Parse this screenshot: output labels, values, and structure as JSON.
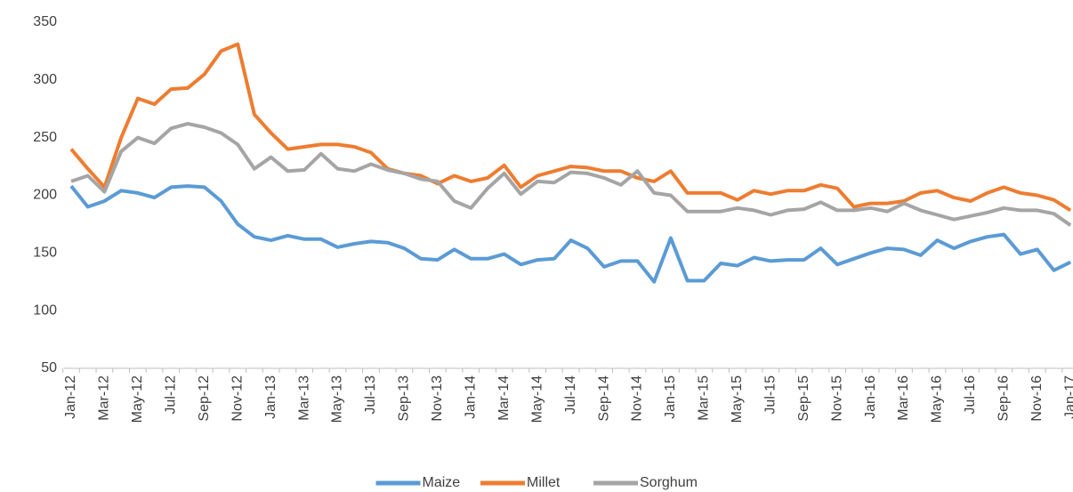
{
  "chart_data": {
    "type": "line",
    "categories": [
      "Jan-12",
      null,
      "Mar-12",
      null,
      "May-12",
      null,
      "Jul-12",
      null,
      "Sep-12",
      null,
      "Nov-12",
      null,
      "Jan-13",
      null,
      "Mar-13",
      null,
      "May-13",
      null,
      "Jul-13",
      null,
      "Sep-13",
      null,
      "Nov-13",
      null,
      "Jan-14",
      null,
      "Mar-14",
      null,
      "May-14",
      null,
      "Jul-14",
      null,
      "Sep-14",
      null,
      "Nov-14",
      null,
      "Jan-15",
      null,
      "Mar-15",
      null,
      "May-15",
      null,
      "Jul-15",
      null,
      "Sep-15",
      null,
      "Nov-15",
      null,
      "Jan-16",
      null,
      "Mar-16",
      null,
      "May-16",
      null,
      "Jul-16",
      null,
      "Sep-16",
      null,
      "Nov-16",
      null,
      "Jan-17"
    ],
    "series": [
      {
        "name": "Maize",
        "color": "#5b9bd5",
        "values": [
          208,
          190,
          195,
          204,
          202,
          198,
          207,
          208,
          207,
          195,
          175,
          164,
          161,
          165,
          162,
          162,
          155,
          158,
          160,
          159,
          154,
          145,
          144,
          153,
          145,
          145,
          149,
          140,
          144,
          145,
          161,
          154,
          138,
          143,
          143,
          125,
          163,
          126,
          126,
          141,
          139,
          146,
          143,
          144,
          144,
          154,
          140,
          145,
          150,
          154,
          153,
          148,
          161,
          154,
          160,
          164,
          166,
          149,
          153,
          135,
          142
        ]
      },
      {
        "name": "Millet",
        "color": "#ed7d31",
        "values": [
          240,
          223,
          207,
          250,
          284,
          279,
          292,
          293,
          305,
          325,
          331,
          270,
          254,
          240,
          242,
          244,
          244,
          242,
          237,
          223,
          219,
          217,
          210,
          217,
          212,
          215,
          226,
          207,
          217,
          221,
          225,
          224,
          221,
          221,
          215,
          212,
          221,
          202,
          202,
          202,
          196,
          204,
          201,
          204,
          204,
          209,
          206,
          190,
          193,
          193,
          195,
          202,
          204,
          198,
          195,
          202,
          207,
          202,
          200,
          196,
          187
        ]
      },
      {
        "name": "Sorghum",
        "color": "#a5a5a5",
        "values": [
          212,
          217,
          203,
          238,
          250,
          245,
          258,
          262,
          259,
          254,
          244,
          223,
          233,
          221,
          222,
          236,
          223,
          221,
          227,
          222,
          219,
          214,
          212,
          195,
          189,
          206,
          219,
          201,
          212,
          211,
          220,
          219,
          215,
          209,
          221,
          202,
          200,
          186,
          186,
          186,
          189,
          187,
          183,
          187,
          188,
          194,
          187,
          187,
          189,
          186,
          193,
          187,
          183,
          179,
          182,
          185,
          189,
          187,
          187,
          184,
          174
        ]
      }
    ],
    "ylim": [
      50,
      350
    ],
    "yticks": [
      50,
      100,
      150,
      200,
      250,
      300,
      350
    ],
    "grid": false,
    "legend": "bottom"
  }
}
